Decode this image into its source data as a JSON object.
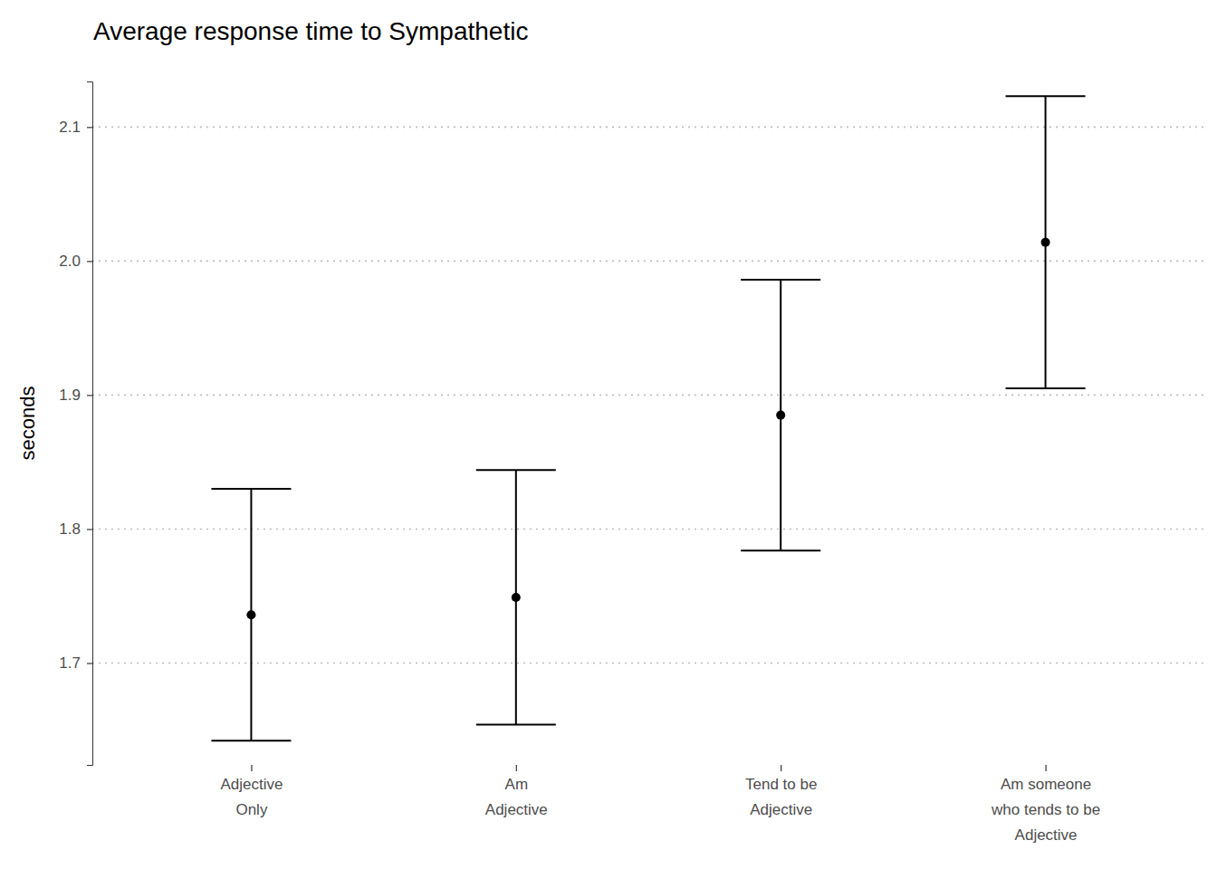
{
  "chart_data": {
    "type": "errorbar",
    "title": "Average response time to Sympathetic",
    "y_label": "seconds",
    "categories": [
      "Adjective\nOnly",
      "Am\nAdjective",
      "Tend to be\nAdjective",
      "Am someone\nwho tends to be\nAdjective"
    ],
    "values": [
      1.736,
      1.749,
      1.885,
      2.014
    ],
    "errors": [
      0.094,
      0.095,
      0.101,
      0.109
    ],
    "color": "#000000",
    "ylim": [
      1.624,
      2.134
    ],
    "yticks": [
      1.7,
      1.8,
      1.9,
      {
        "value": 2,
        "label": "2.0"
      },
      2.1
    ],
    "grid": true
  }
}
